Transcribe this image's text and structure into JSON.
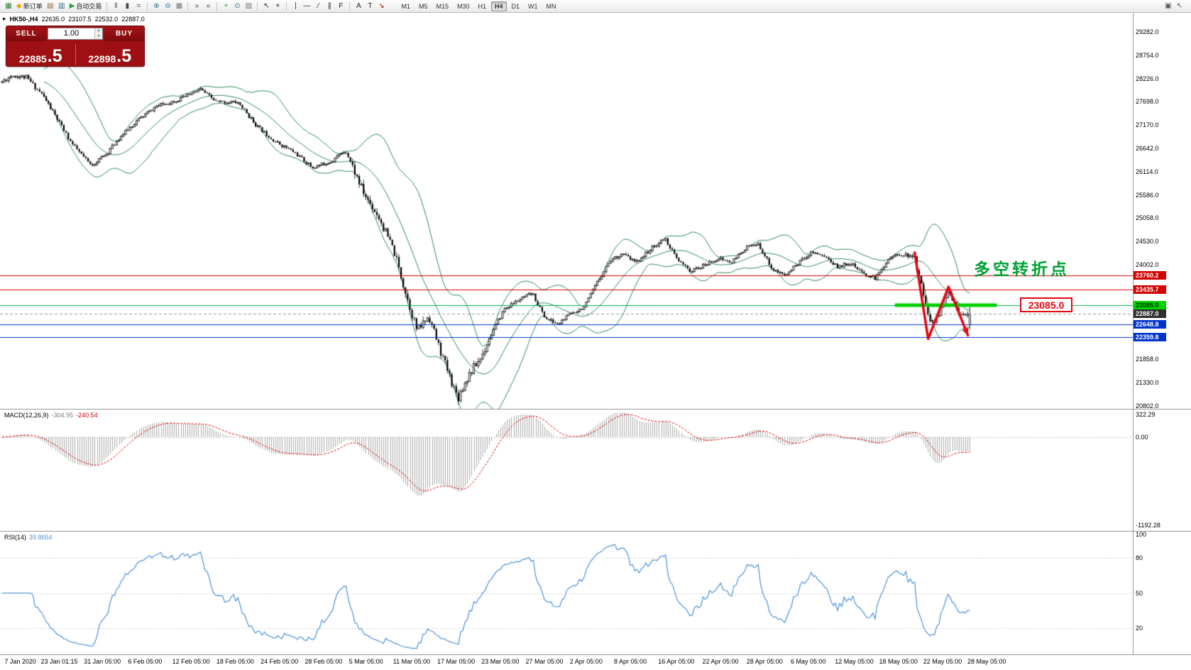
{
  "toolbar": {
    "groups": [
      {
        "name": "file-group",
        "items": [
          {
            "name": "new-chart-button",
            "glyph": "▦",
            "color": "#2e7d32"
          },
          {
            "name": "new-order-button",
            "glyph": "◆",
            "color": "#e6a817",
            "label": "新订单"
          },
          {
            "name": "chart-profile-button",
            "glyph": "▤",
            "color": "#8a6d3b"
          },
          {
            "name": "market-watch-button",
            "glyph": "▥",
            "color": "#31708f"
          },
          {
            "name": "autotrading-button",
            "glyph": "▶",
            "color": "#2e9e3f",
            "label": "自动交易"
          }
        ]
      },
      {
        "name": "chart-type-group",
        "items": [
          {
            "name": "bar-chart-button",
            "glyph": "‖",
            "color": "#444444"
          },
          {
            "name": "candlestick-button",
            "glyph": "▮",
            "color": "#444444"
          },
          {
            "name": "line-chart-button",
            "glyph": "≈",
            "color": "#444444"
          }
        ]
      },
      {
        "name": "zoom-group",
        "items": [
          {
            "name": "zoom-in-button",
            "glyph": "⊕",
            "color": "#31708f"
          },
          {
            "name": "zoom-out-button",
            "glyph": "⊖",
            "color": "#31708f"
          },
          {
            "name": "tile-windows-button",
            "glyph": "▦",
            "color": "#777777"
          }
        ]
      },
      {
        "name": "scroll-group",
        "items": [
          {
            "name": "auto-scroll-button",
            "glyph": "»",
            "color": "#444444"
          },
          {
            "name": "chart-shift-button",
            "glyph": "«",
            "color": "#444444"
          }
        ]
      },
      {
        "name": "insert-group",
        "items": [
          {
            "name": "indicators-button",
            "glyph": "+",
            "color": "#2e9e3f"
          },
          {
            "name": "periods-button",
            "glyph": "⊙",
            "color": "#31708f"
          },
          {
            "name": "templates-button",
            "glyph": "▨",
            "color": "#777777"
          }
        ]
      },
      {
        "name": "cursor-group",
        "items": [
          {
            "name": "cursor-button",
            "glyph": "↖",
            "color": "#222222"
          },
          {
            "name": "crosshair-button",
            "glyph": "+",
            "color": "#222222"
          }
        ]
      },
      {
        "name": "draw-group",
        "items": [
          {
            "name": "vertical-line-button",
            "glyph": "∣",
            "color": "#222222"
          },
          {
            "name": "horizontal-line-button",
            "glyph": "―",
            "color": "#222222"
          },
          {
            "name": "trendline-button",
            "glyph": "∕",
            "color": "#222222"
          },
          {
            "name": "channel-button",
            "glyph": "∥",
            "color": "#222222"
          },
          {
            "name": "fibonacci-button",
            "glyph": "F",
            "color": "#222222"
          }
        ]
      },
      {
        "name": "text-group",
        "items": [
          {
            "name": "text-button",
            "glyph": "A",
            "color": "#222222"
          },
          {
            "name": "text-label-button",
            "glyph": "T",
            "color": "#222222"
          },
          {
            "name": "arrows-button",
            "glyph": "↘",
            "color": "#b00000"
          }
        ]
      }
    ],
    "timeframes": [
      "M1",
      "M5",
      "M15",
      "M30",
      "H1",
      "H4",
      "D1",
      "W1",
      "MN"
    ],
    "active_timeframe": "H4",
    "right_items": [
      {
        "name": "arrange-windows-button",
        "glyph": "▣",
        "color": "#555555"
      },
      {
        "name": "pointer-mode-button",
        "glyph": "↖",
        "color": "#555555"
      }
    ]
  },
  "quote_header": {
    "collapse_icon": "▸",
    "symbol_period": "HK50-,H4",
    "open": "22635.0",
    "high": "23107.5",
    "low": "22532.0",
    "close": "22887.0"
  },
  "trade_panel": {
    "sell_label": "SELL",
    "buy_label": "BUY",
    "volume": "1.00",
    "spinner_up": "▴",
    "spinner_down": "▾",
    "sell_price": "22885",
    "sell_frac": ".5",
    "buy_price": "22898",
    "buy_frac": ".5"
  },
  "price_axis": {
    "labels": [
      "29282.0",
      "28754.0",
      "28226.0",
      "27698.0",
      "27170.0",
      "26642.0",
      "26114.0",
      "25586.0",
      "25058.0",
      "24530.0",
      "24002.0",
      "21858.0",
      "21330.0",
      "20802.0"
    ],
    "tags": [
      {
        "name": "resistance-tag-upper",
        "text": "23760.2",
        "price": 23760.2,
        "bg": "#d40000",
        "fg": "#ffffff"
      },
      {
        "name": "resistance-tag-lower",
        "text": "23435.7",
        "price": 23435.7,
        "bg": "#d40000",
        "fg": "#ffffff"
      },
      {
        "name": "support-tag-green",
        "text": "23085.0",
        "price": 23085.0,
        "bg": "#00d200",
        "fg": "#003300"
      },
      {
        "name": "current-price-tag",
        "text": "22887.0",
        "price": 22887.0,
        "bg": "#2f2f2f",
        "fg": "#ffffff"
      },
      {
        "name": "support-tag-blue-upper",
        "text": "22648.8",
        "price": 22648.8,
        "bg": "#0033cc",
        "fg": "#ffffff"
      },
      {
        "name": "support-tag-blue-lower",
        "text": "22359.8",
        "price": 22359.8,
        "bg": "#0033cc",
        "fg": "#ffffff"
      }
    ]
  },
  "indicators": {
    "macd": {
      "label": "MACD(12,26,9)",
      "value_main": "-304.95",
      "value_signal": "-240.54",
      "axis": [
        "322.29",
        "0.00",
        "-1192.28"
      ]
    },
    "rsi": {
      "label": "RSI(14)",
      "value": "39.8654",
      "axis": [
        "100",
        "80",
        "50",
        "20"
      ]
    }
  },
  "annotations": {
    "turning_point_text": "多空转折点",
    "turning_point_color": "#00a135",
    "price_callout": "23085.0",
    "price_callout_color": "#e30613"
  },
  "timeline": {
    "labels": [
      {
        "f": 0.004,
        "text": "7 Jan 2020"
      },
      {
        "f": 0.036,
        "text": "23 Jan 01:15"
      },
      {
        "f": 0.074,
        "text": "31 Jan 05:00"
      },
      {
        "f": 0.113,
        "text": "6 Feb 05:00"
      },
      {
        "f": 0.152,
        "text": "12 Feb 05:00"
      },
      {
        "f": 0.191,
        "text": "18 Feb 05:00"
      },
      {
        "f": 0.23,
        "text": "24 Feb 05:00"
      },
      {
        "f": 0.269,
        "text": "28 Feb 05:00"
      },
      {
        "f": 0.308,
        "text": "5 Mar 05:00"
      },
      {
        "f": 0.347,
        "text": "11 Mar 05:00"
      },
      {
        "f": 0.386,
        "text": "17 Mar 05:00"
      },
      {
        "f": 0.425,
        "text": "23 Mar 05:00"
      },
      {
        "f": 0.464,
        "text": "27 Mar 05:00"
      },
      {
        "f": 0.503,
        "text": "2 Apr 05:00"
      },
      {
        "f": 0.542,
        "text": "8 Apr 05:00"
      },
      {
        "f": 0.581,
        "text": "16 Apr 05:00"
      },
      {
        "f": 0.62,
        "text": "22 Apr 05:00"
      },
      {
        "f": 0.659,
        "text": "28 Apr 05:00"
      },
      {
        "f": 0.698,
        "text": "6 May 05:00"
      },
      {
        "f": 0.737,
        "text": "12 May 05:00"
      },
      {
        "f": 0.776,
        "text": "18 May 05:00"
      },
      {
        "f": 0.815,
        "text": "22 May 05:00"
      },
      {
        "f": 0.854,
        "text": "28 May 05:00"
      }
    ]
  },
  "chart_data": {
    "type": "candlestick",
    "symbol": "HK50-",
    "timeframe": "H4",
    "title": "HK50-,H4",
    "ohlc_current": {
      "open": 22635.0,
      "high": 23107.5,
      "low": 22532.0,
      "close": 22887.0
    },
    "price_top": 29717,
    "price_bottom": 20733,
    "num_candles": 440,
    "candles_end_frac": 0.858,
    "seed": 11,
    "noise": 42,
    "noise_zones": [
      {
        "t": [
          0.0,
          0.06
        ],
        "mult": 1.3
      },
      {
        "t": [
          0.36,
          0.5
        ],
        "mult": 2.4
      },
      {
        "t": [
          0.94,
          1.0
        ],
        "mult": 1.5
      }
    ],
    "anchors": [
      [
        0.0,
        28150
      ],
      [
        0.01,
        28300
      ],
      [
        0.025,
        28250
      ],
      [
        0.042,
        27850
      ],
      [
        0.057,
        27300
      ],
      [
        0.072,
        26750
      ],
      [
        0.092,
        26250
      ],
      [
        0.107,
        26500
      ],
      [
        0.122,
        26900
      ],
      [
        0.141,
        27300
      ],
      [
        0.16,
        27600
      ],
      [
        0.183,
        27750
      ],
      [
        0.205,
        27980
      ],
      [
        0.221,
        27700
      ],
      [
        0.244,
        27680
      ],
      [
        0.263,
        27150
      ],
      [
        0.282,
        26800
      ],
      [
        0.302,
        26550
      ],
      [
        0.321,
        26200
      ],
      [
        0.34,
        26350
      ],
      [
        0.355,
        26600
      ],
      [
        0.374,
        25600
      ],
      [
        0.389,
        25100
      ],
      [
        0.405,
        24300
      ],
      [
        0.418,
        23300
      ],
      [
        0.429,
        22500
      ],
      [
        0.441,
        22850
      ],
      [
        0.452,
        22100
      ],
      [
        0.462,
        21500
      ],
      [
        0.471,
        20980
      ],
      [
        0.482,
        21500
      ],
      [
        0.495,
        21900
      ],
      [
        0.505,
        22400
      ],
      [
        0.519,
        23000
      ],
      [
        0.534,
        23200
      ],
      [
        0.548,
        23350
      ],
      [
        0.561,
        22800
      ],
      [
        0.574,
        22650
      ],
      [
        0.588,
        22900
      ],
      [
        0.602,
        23050
      ],
      [
        0.615,
        23600
      ],
      [
        0.628,
        24100
      ],
      [
        0.641,
        24250
      ],
      [
        0.655,
        24050
      ],
      [
        0.67,
        24350
      ],
      [
        0.685,
        24600
      ],
      [
        0.698,
        24100
      ],
      [
        0.712,
        23850
      ],
      [
        0.727,
        24000
      ],
      [
        0.74,
        24150
      ],
      [
        0.754,
        24050
      ],
      [
        0.769,
        24400
      ],
      [
        0.782,
        24450
      ],
      [
        0.796,
        23900
      ],
      [
        0.809,
        23750
      ],
      [
        0.823,
        24050
      ],
      [
        0.837,
        24300
      ],
      [
        0.85,
        24200
      ],
      [
        0.863,
        23950
      ],
      [
        0.876,
        24050
      ],
      [
        0.889,
        23800
      ],
      [
        0.903,
        23700
      ],
      [
        0.916,
        24150
      ],
      [
        0.93,
        24250
      ],
      [
        0.943,
        24150
      ],
      [
        0.954,
        23150
      ],
      [
        0.96,
        22650
      ],
      [
        0.969,
        22900
      ],
      [
        0.978,
        23400
      ],
      [
        0.988,
        22950
      ],
      [
        1.0,
        22887
      ]
    ],
    "bollinger": {
      "period": 20,
      "deviation": 2,
      "color": "#2e8b57"
    },
    "hlines": [
      {
        "price": 23760.2,
        "color": "#d40000",
        "width": 1
      },
      {
        "price": 23435.7,
        "color": "#d40000",
        "width": 1
      },
      {
        "price": 23085.0,
        "color": "#00b050",
        "width": 1
      },
      {
        "price": 22887.0,
        "color": "#9a9a9a",
        "width": 1,
        "dash": [
          4,
          3
        ]
      },
      {
        "price": 22648.8,
        "color": "#0033cc",
        "width": 1
      },
      {
        "price": 22359.8,
        "color": "#0033cc",
        "width": 1
      }
    ],
    "green_segment": {
      "price": 23085.0,
      "from_frac": 0.79,
      "to_frac": 0.88,
      "color": "#00d200",
      "width": 5
    },
    "red_arrow": {
      "color": "#e30613",
      "width": 3.5,
      "points": [
        [
          0.943,
          24280
        ],
        [
          0.957,
          22320
        ],
        [
          0.978,
          23500
        ],
        [
          0.998,
          22400
        ]
      ]
    },
    "macd": {
      "fast": 12,
      "slow": 26,
      "signal": 9,
      "hist_color": "#a8a8a8",
      "signal_color": "#dd0000",
      "range_pos": 322.29,
      "range_neg": -1192.28
    },
    "rsi": {
      "period": 14,
      "color": "#4a90d9",
      "levels": [
        80,
        50,
        20
      ]
    },
    "candle_up_color": "#ffffff",
    "candle_down_color": "#000000",
    "candle_border": "#000000"
  }
}
